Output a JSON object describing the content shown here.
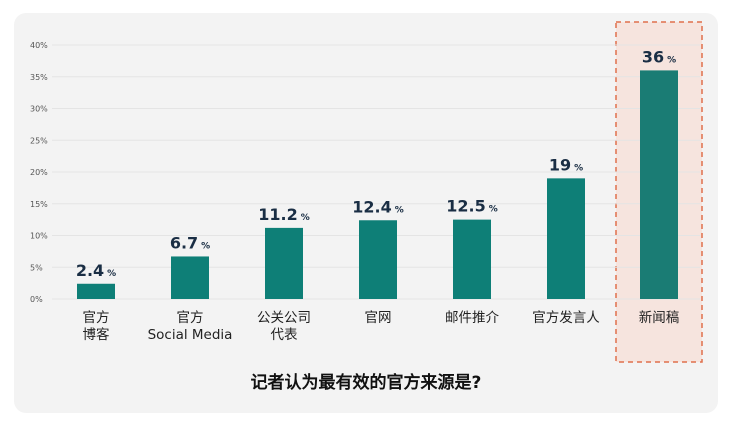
{
  "chart_data": {
    "type": "bar",
    "title": "记者认为最有效的官方来源是?",
    "categories": [
      [
        "官方",
        "博客"
      ],
      [
        "官方",
        "Social Media"
      ],
      [
        "公关公司",
        "代表"
      ],
      [
        "官网"
      ],
      [
        "邮件推介"
      ],
      [
        "官方发言人"
      ],
      [
        "新闻稿"
      ]
    ],
    "values": [
      2.4,
      6.7,
      11.2,
      12.4,
      12.5,
      19,
      36
    ],
    "value_labels": [
      "2.4",
      "6.7",
      "11.2",
      "12.4",
      "12.5",
      "19",
      "36"
    ],
    "unit": "%",
    "ylim": [
      0,
      40
    ],
    "yticks": [
      "0%",
      "5%",
      "10%",
      "15%",
      "20%",
      "25%",
      "30%",
      "35%",
      "40%"
    ],
    "highlight_index": 6,
    "grid": true,
    "colors": {
      "bar": "#0e7f77",
      "highlight_bar": "#1a7c74",
      "highlight_fill": "#f6e4de",
      "highlight_border": "#e0704c",
      "value_text": "#1a2e44",
      "tick_text": "#555555",
      "grid": "#e4e4e4"
    }
  }
}
